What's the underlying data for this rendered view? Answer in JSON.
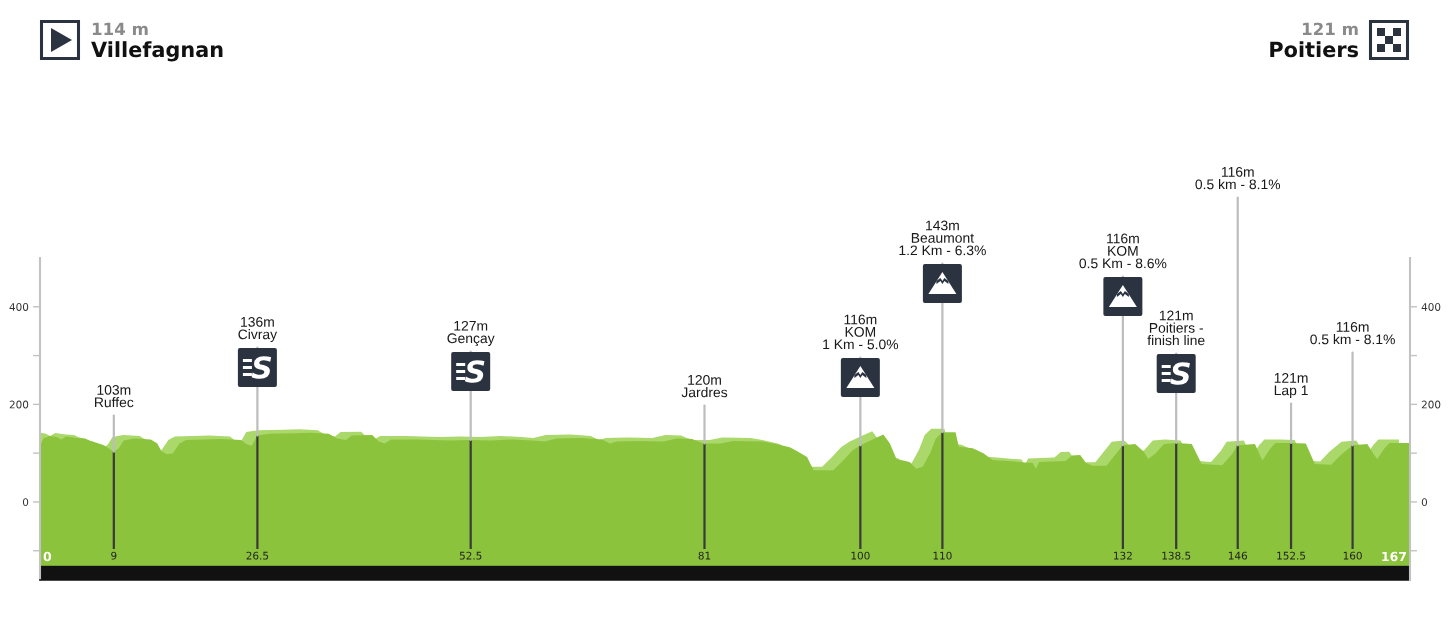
{
  "chart_data": {
    "type": "area",
    "series": [
      {
        "color": "#8cc33c",
        "x": [
          0,
          0.4,
          1.2,
          2.0,
          2.6,
          3.2,
          4.5,
          5.5,
          6.0,
          6.8,
          7.8,
          9.0,
          9.6,
          10.2,
          11.5,
          13.5,
          14.3,
          14.8,
          15.5,
          16.2,
          17.0,
          17.8,
          20,
          22,
          24.5,
          25.2,
          25.8,
          26.5,
          28,
          31,
          33,
          35.2,
          36.2,
          37.3,
          38,
          40.5,
          41.3,
          42,
          42.8,
          46,
          50,
          52.5,
          55,
          57.5,
          60,
          61.5,
          63,
          66,
          68.5,
          69.5,
          70.3,
          73,
          76,
          77.6,
          79.5,
          80.2,
          81,
          83,
          84.5,
          88,
          89.4,
          91.4,
          92.2,
          93.5,
          94.3,
          96.7,
          97.9,
          99.0,
          100,
          101.5,
          102.8,
          103.6,
          104.4,
          106,
          106.8,
          107.6,
          108.5,
          109.2,
          110,
          111.6,
          112.0,
          113.7,
          115,
          116.1,
          118,
          120,
          121,
          121.4,
          121.8,
          125,
          125.8,
          126.8,
          127.5,
          128.3,
          130,
          131,
          132,
          133.5,
          134.5,
          135.1,
          136,
          137,
          138.5,
          140.4,
          141.6,
          144.1,
          145.3,
          146,
          148.1,
          149,
          150,
          150.6,
          152.5,
          154.3,
          155.4,
          157.4,
          158.5,
          160,
          161.8,
          162.5,
          163,
          163.9,
          164.5,
          167
        ],
        "values": [
          114,
          130,
          135,
          133,
          128,
          134,
          131,
          130,
          126,
          122,
          116,
          103,
          110,
          126,
          130,
          128,
          120,
          104,
          98,
          100,
          120,
          127,
          128,
          129,
          127,
          118,
          115,
          136,
          140,
          141,
          142,
          140,
          130,
          127,
          136,
          137,
          124,
          120,
          128,
          128,
          126,
          127,
          126,
          128,
          126,
          124,
          130,
          131,
          128,
          120,
          124,
          125,
          124,
          130,
          129,
          124,
          120,
          120,
          125,
          124,
          120,
          112,
          105,
          92,
          65,
          65,
          85,
          105,
          116,
          128,
          138,
          120,
          88,
          82,
          68,
          72,
          100,
          130,
          143,
          143,
          113,
          110,
          100,
          86,
          84,
          81,
          80,
          68,
          82,
          84,
          95,
          96,
          80,
          74,
          74,
          95,
          116,
          119,
          104,
          88,
          100,
          119,
          121,
          119,
          78,
          75,
          98,
          116,
          119,
          85,
          110,
          121,
          121,
          120,
          78,
          76,
          95,
          116,
          119,
          100,
          88,
          110,
          121,
          121
        ]
      }
    ],
    "xlim": [
      0,
      167
    ],
    "xticks": [
      0,
      9,
      26.5,
      52.5,
      81,
      100,
      110,
      132,
      138.5,
      146,
      152.5,
      160,
      167
    ],
    "ylim": [
      -160,
      500
    ],
    "yticks": [
      {
        "value": -100,
        "label": null
      },
      0,
      {
        "value": 100,
        "label": null
      },
      200,
      {
        "value": 300,
        "label": null
      },
      400
    ],
    "y2lim": [
      -160,
      500
    ],
    "y2ticks": [
      {
        "value": -100,
        "label": null
      },
      0,
      {
        "value": 100,
        "label": null
      },
      200,
      {
        "value": 300,
        "label": null
      },
      400
    ],
    "bands": [
      {
        "axis": "y",
        "from": -160,
        "to": -130,
        "color": "#111111"
      },
      {
        "axis": "y",
        "from": -130,
        "to": 0,
        "color": "#8cc33c"
      }
    ],
    "annotations": [
      "114 m",
      "Villefagnan",
      "121 m",
      "Poitiers",
      {
        "text": "103m\nRuffec",
        "x": 9,
        "y": 103
      },
      {
        "text": "136m\nCivray",
        "x": 26.5,
        "y": 136
      },
      {
        "text": "127m\nGençay",
        "x": 52.5,
        "y": 127
      },
      {
        "text": "120m\nJardres",
        "x": 81,
        "y": 120
      },
      {
        "text": "116m\nKOM\n1 Km - 5.0%",
        "x": 100,
        "y": 116
      },
      {
        "text": "143m\nBeaumont\n1.2 Km - 6.3%",
        "x": 110,
        "y": 143
      },
      {
        "text": "116m\nKOM\n0.5 Km - 8.6%",
        "x": 132,
        "y": 116
      },
      {
        "text": "121m\nPoitiers -\nfinish line",
        "x": 138.5,
        "y": 121
      },
      {
        "text": "116m\n0.5 km - 8.1%",
        "x": 146,
        "y": 116
      },
      {
        "text": "121m\nLap 1",
        "x": 152.5,
        "y": 121
      },
      {
        "text": "116m\n0.5 km - 8.1%",
        "x": 160,
        "y": 116
      }
    ]
  }
}
